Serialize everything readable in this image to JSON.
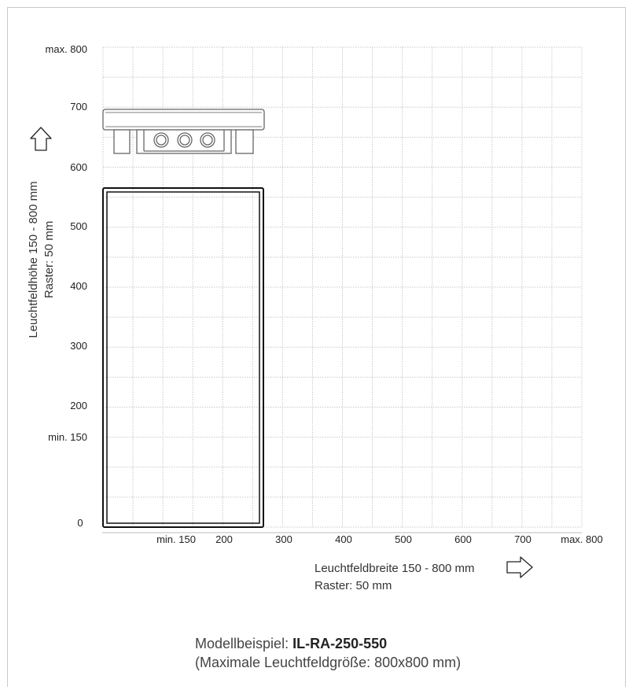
{
  "x_axis": {
    "ticks": [
      "min. 150",
      "200",
      "300",
      "400",
      "500",
      "600",
      "700",
      "max. 800"
    ],
    "title_line1": "Leuchtfeldbreite 150 - 800 mm",
    "title_line2": "Raster: 50 mm"
  },
  "y_axis": {
    "ticks": [
      "max. 800",
      "700",
      "600",
      "500",
      "400",
      "300",
      "200",
      "min. 150",
      "0"
    ],
    "title_line1": "Leuchtfeldhöhe 150 - 800 mm",
    "title_line2": "Raster: 50 mm"
  },
  "example_model": {
    "label": "Modellbeispiel: ",
    "code": "IL-RA-250-550",
    "note": "(Maximale Leuchtfeldgröße: 800x800 mm)",
    "width_mm": 250,
    "height_mm": 550
  },
  "grid": {
    "step_mm": 50,
    "max_mm": 800
  },
  "icons": {
    "right_arrow": "arrow-right-icon",
    "up_arrow": "arrow-up-icon"
  }
}
